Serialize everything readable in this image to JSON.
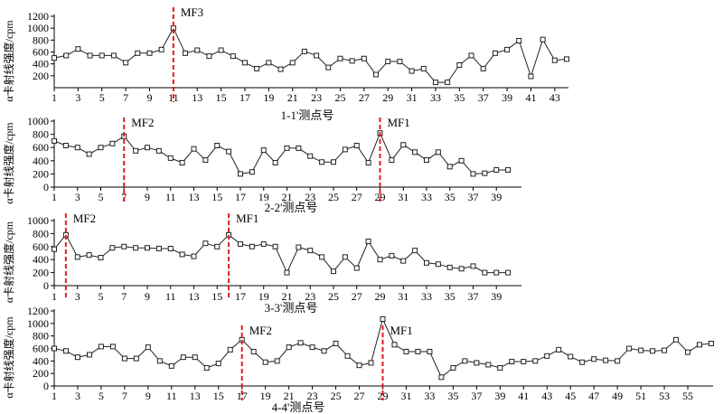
{
  "chart_data": [
    {
      "type": "line",
      "xlabel": "1-1'测点号",
      "ylabel": "α卡射线强度/cpm",
      "ylim": [
        0,
        1200
      ],
      "yticks": [
        200,
        400,
        600,
        800,
        1000,
        1200
      ],
      "xlim": [
        1,
        44
      ],
      "xticks": [
        1,
        3,
        5,
        7,
        9,
        11,
        13,
        15,
        17,
        19,
        21,
        23,
        25,
        27,
        29,
        31,
        33,
        35,
        37,
        39,
        41,
        43
      ],
      "x": [
        1,
        2,
        3,
        4,
        5,
        6,
        7,
        8,
        9,
        10,
        11,
        12,
        13,
        14,
        15,
        16,
        17,
        18,
        19,
        20,
        21,
        22,
        23,
        24,
        25,
        26,
        27,
        28,
        29,
        30,
        31,
        32,
        33,
        34,
        35,
        36,
        37,
        38,
        39,
        40,
        41,
        42,
        43,
        44
      ],
      "values": [
        500,
        540,
        650,
        540,
        540,
        540,
        420,
        580,
        580,
        640,
        1000,
        580,
        630,
        530,
        630,
        530,
        420,
        320,
        420,
        310,
        420,
        610,
        540,
        340,
        490,
        450,
        490,
        220,
        440,
        440,
        280,
        320,
        90,
        90,
        380,
        540,
        320,
        580,
        640,
        790,
        190,
        810,
        460,
        480
      ],
      "faults": [
        {
          "x": 11,
          "label": "MF3"
        }
      ]
    },
    {
      "type": "line",
      "xlabel": "2-2'测点号",
      "ylabel": "α卡射线强度/cpm",
      "ylim": [
        0,
        1000
      ],
      "yticks": [
        0,
        200,
        400,
        600,
        800,
        1000
      ],
      "xlim": [
        1,
        41
      ],
      "xticks": [
        1,
        3,
        5,
        7,
        9,
        11,
        13,
        15,
        17,
        19,
        21,
        23,
        25,
        27,
        29,
        31,
        33,
        35,
        37,
        39
      ],
      "x": [
        1,
        2,
        3,
        4,
        5,
        6,
        7,
        8,
        9,
        10,
        11,
        12,
        13,
        14,
        15,
        16,
        17,
        18,
        19,
        20,
        21,
        22,
        23,
        24,
        25,
        26,
        27,
        28,
        29,
        30,
        31,
        32,
        33,
        34,
        35,
        36,
        37,
        38,
        39,
        40
      ],
      "values": [
        700,
        630,
        600,
        500,
        600,
        660,
        770,
        550,
        600,
        550,
        440,
        370,
        580,
        410,
        630,
        540,
        200,
        230,
        560,
        370,
        590,
        590,
        470,
        380,
        380,
        570,
        630,
        370,
        820,
        410,
        640,
        530,
        410,
        530,
        310,
        400,
        200,
        210,
        260,
        260
      ],
      "faults": [
        {
          "x": 7,
          "label": "MF2"
        },
        {
          "x": 29,
          "label": "MF1"
        }
      ]
    },
    {
      "type": "line",
      "xlabel": "3-3'测点号",
      "ylabel": "α卡射线强度/cpm",
      "ylim": [
        0,
        1000
      ],
      "yticks": [
        0,
        200,
        400,
        600,
        800,
        1000
      ],
      "xlim": [
        1,
        41
      ],
      "xticks": [
        1,
        3,
        5,
        7,
        9,
        11,
        13,
        15,
        17,
        19,
        21,
        23,
        25,
        27,
        29,
        31,
        33,
        35,
        37,
        39
      ],
      "x": [
        1,
        2,
        3,
        4,
        5,
        6,
        7,
        8,
        9,
        10,
        11,
        12,
        13,
        14,
        15,
        16,
        17,
        18,
        19,
        20,
        21,
        22,
        23,
        24,
        25,
        26,
        27,
        28,
        29,
        30,
        31,
        32,
        33,
        34,
        35,
        36,
        37,
        38,
        39,
        40
      ],
      "values": [
        560,
        780,
        440,
        470,
        430,
        580,
        600,
        580,
        580,
        570,
        570,
        480,
        450,
        650,
        600,
        780,
        640,
        600,
        640,
        600,
        200,
        590,
        540,
        440,
        220,
        440,
        270,
        680,
        400,
        460,
        380,
        540,
        350,
        330,
        280,
        260,
        300,
        200,
        200,
        200
      ],
      "faults": [
        {
          "x": 2,
          "label": "MF2"
        },
        {
          "x": 16,
          "label": "MF1"
        }
      ]
    },
    {
      "type": "line",
      "xlabel": "4-4'测点号",
      "ylabel": "α卡射线强度/cpm",
      "ylim": [
        0,
        1200
      ],
      "yticks": [
        0,
        200,
        400,
        600,
        800,
        1000,
        1200
      ],
      "xlim": [
        1,
        57
      ],
      "xticks": [
        1,
        3,
        5,
        7,
        9,
        11,
        13,
        15,
        17,
        19,
        21,
        23,
        25,
        27,
        29,
        31,
        33,
        35,
        37,
        39,
        41,
        43,
        45,
        47,
        49,
        51,
        53,
        55
      ],
      "x": [
        1,
        2,
        3,
        4,
        5,
        6,
        7,
        8,
        9,
        10,
        11,
        12,
        13,
        14,
        15,
        16,
        17,
        18,
        19,
        20,
        21,
        22,
        23,
        24,
        25,
        26,
        27,
        28,
        29,
        30,
        31,
        32,
        33,
        34,
        35,
        36,
        37,
        38,
        39,
        40,
        41,
        42,
        43,
        44,
        45,
        46,
        47,
        48,
        49,
        50,
        51,
        52,
        53,
        54,
        55,
        56,
        57
      ],
      "values": [
        600,
        560,
        460,
        500,
        630,
        630,
        440,
        440,
        620,
        400,
        320,
        460,
        460,
        290,
        360,
        580,
        740,
        550,
        380,
        400,
        620,
        690,
        620,
        560,
        680,
        480,
        330,
        370,
        1070,
        660,
        550,
        550,
        550,
        140,
        290,
        400,
        370,
        340,
        290,
        390,
        390,
        400,
        480,
        580,
        470,
        380,
        430,
        410,
        400,
        600,
        570,
        560,
        570,
        740,
        540,
        660,
        680
      ],
      "faults": [
        {
          "x": 17,
          "label": "MF2"
        },
        {
          "x": 29,
          "label": "MF1"
        }
      ]
    }
  ]
}
